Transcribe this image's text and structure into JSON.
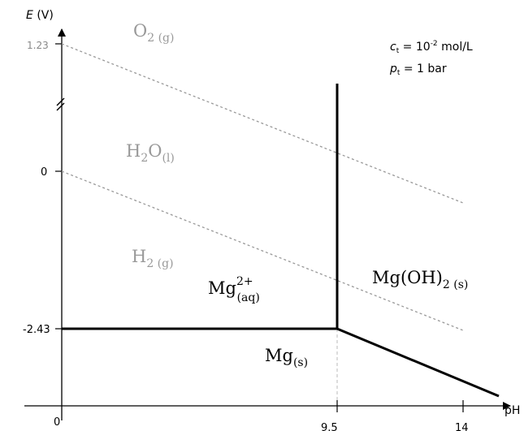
{
  "axes": {
    "y_symbol": "E",
    "y_unit": "(V)",
    "x_label": "pH",
    "x_ticks": [
      "0",
      "9.5",
      "14"
    ],
    "y_ticks": [
      "1.23",
      "0",
      "-2.43"
    ]
  },
  "conditions": {
    "ct_sym": "c",
    "ct_sub": "t",
    "ct_eq": " = 10",
    "ct_exp": "-2",
    "ct_unit": " mol/L",
    "pt_sym": "p",
    "pt_sub": "t",
    "pt_eq": " = 1 bar"
  },
  "regions": {
    "o2": {
      "base": "O",
      "sub": "2 (g)"
    },
    "h2o": {
      "base": "H",
      "sub1": "2",
      "mid": "O",
      "sub2": "(l)"
    },
    "h2": {
      "base": "H",
      "sub": "2 (g)"
    },
    "mg2": {
      "base": "Mg",
      "sup": "2+",
      "sub": "(aq)"
    },
    "mgoh2": {
      "base": "Mg(OH)",
      "sub": "2 (s)"
    },
    "mg": {
      "base": "Mg",
      "sub": "(s)"
    }
  },
  "chart_data": {
    "type": "line",
    "xlabel": "pH",
    "ylabel": "E (V)",
    "series": [
      {
        "style": "solid",
        "points": [
          [
            0,
            -2.43
          ],
          [
            9.5,
            -2.43
          ]
        ]
      },
      {
        "style": "solid",
        "points": [
          [
            9.5,
            -2.43
          ],
          [
            14,
            -2.74
          ]
        ]
      },
      {
        "style": "solid",
        "points": [
          [
            9.5,
            -2.43
          ],
          [
            9.5,
            0.5
          ]
        ]
      },
      {
        "style": "dashed",
        "color": "#999999",
        "points": [
          [
            0,
            1.23
          ],
          [
            13,
            0.46
          ]
        ]
      },
      {
        "style": "dashed",
        "color": "#999999",
        "points": [
          [
            0,
            0
          ],
          [
            13,
            -0.77
          ]
        ]
      }
    ],
    "y_axis_break": true
  }
}
